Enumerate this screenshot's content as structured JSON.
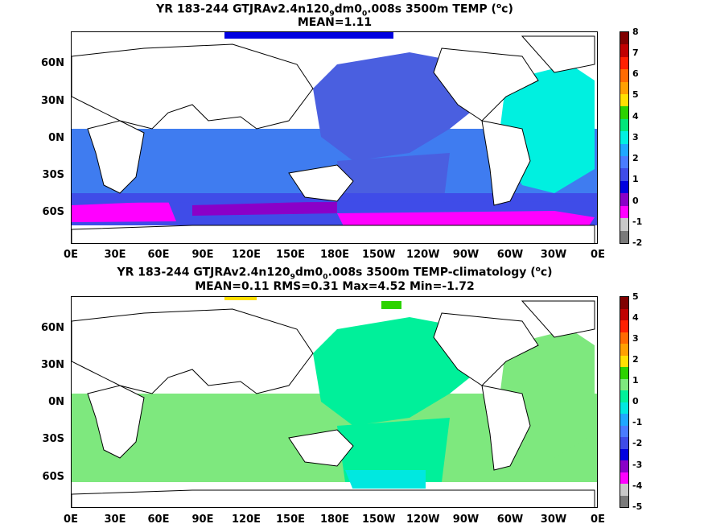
{
  "panels": [
    {
      "title_parts": [
        "YR 183-244 GTJRAv2.4n120",
        "9",
        "dm0",
        "0",
        ".008s 3500m TEMP (",
        "o",
        "c)"
      ],
      "stats": "MEAN=1.11",
      "lat_labels": [
        "60N",
        "30N",
        "0N",
        "30S",
        "60S"
      ],
      "lon_labels": [
        "0E",
        "30E",
        "60E",
        "90E",
        "120E",
        "150E",
        "180E",
        "150W",
        "120W",
        "90W",
        "60W",
        "30W",
        "0E"
      ],
      "colorbar_labels": [
        "8",
        "7",
        "6",
        "5",
        "4",
        "3",
        "2",
        "1",
        "0",
        "-1",
        "-2"
      ],
      "colorbar_colors": [
        "#800000",
        "#c00000",
        "#ff2000",
        "#ff6a00",
        "#ffa000",
        "#ffe000",
        "#2cd300",
        "#00e67a",
        "#00f0e0",
        "#1fa8ff",
        "#4a7cff",
        "#3f4ce8",
        "#0000e0",
        "#8a00c8",
        "#ff00ff",
        "#c8c8c8",
        "#7a7a7a"
      ]
    },
    {
      "title_parts": [
        "YR 183-244 GTJRAv2.4n120",
        "9",
        "dm0",
        "0",
        ".008s 3500m TEMP-climatology (",
        "o",
        "c)"
      ],
      "stats": "MEAN=0.11   RMS=0.31   Max=4.52   Min=-1.72",
      "lat_labels": [
        "60N",
        "30N",
        "0N",
        "30S",
        "60S"
      ],
      "lon_labels": [
        "0E",
        "30E",
        "60E",
        "90E",
        "120E",
        "150E",
        "180E",
        "150W",
        "120W",
        "90W",
        "60W",
        "30W",
        "0E"
      ],
      "colorbar_labels": [
        "5",
        "4",
        "3",
        "2",
        "1",
        "0",
        "-1",
        "-2",
        "-3",
        "-4",
        "-5"
      ],
      "colorbar_colors": [
        "#800000",
        "#c00000",
        "#ff2000",
        "#ff6a00",
        "#ffa000",
        "#ffe000",
        "#2cd300",
        "#7ee87e",
        "#00f09a",
        "#00e8e0",
        "#1fa8ff",
        "#4a7cff",
        "#3f4ce8",
        "#0000e0",
        "#8a00c8",
        "#ff00ff",
        "#c8c8c8",
        "#7a7a7a"
      ]
    }
  ]
}
